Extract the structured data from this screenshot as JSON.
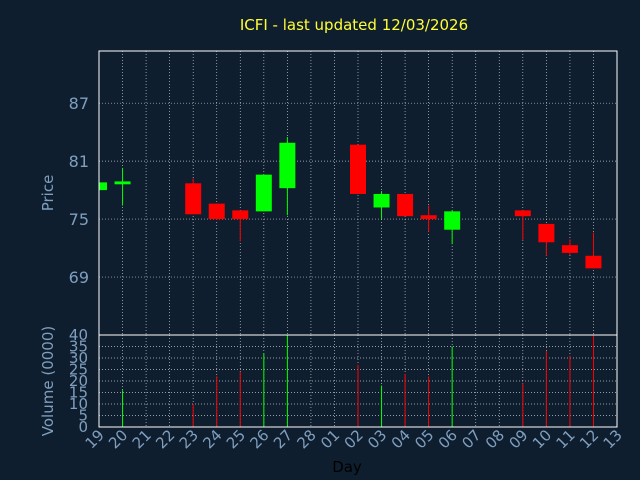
{
  "colors": {
    "background": "#0f1e2e",
    "up": "#00ff00",
    "down": "#ff0000",
    "grid": "#ffffff",
    "axis": "#7f9fbf",
    "title": "#ffff33"
  },
  "chart_data": {
    "type": "candlestick",
    "title": "ICFI - last updated 12/03/2026",
    "xlabel": "Day",
    "ylabel": "Price",
    "volume_label": "Volume (0000)",
    "x_ticks": [
      "19",
      "20",
      "21",
      "22",
      "23",
      "24",
      "25",
      "26",
      "27",
      "28",
      "01",
      "02",
      "03",
      "04",
      "05",
      "06",
      "07",
      "08",
      "09",
      "10",
      "11",
      "12",
      "13"
    ],
    "price_ticks": [
      69,
      75,
      81,
      87
    ],
    "price_range": [
      63,
      92.4
    ],
    "volume_ticks": [
      0,
      5,
      10,
      15,
      20,
      25,
      30,
      35,
      40
    ],
    "volume_range": [
      0,
      40
    ],
    "grid": true,
    "candles": [
      {
        "day": "19",
        "open": 78.0,
        "high": 78.8,
        "low": 78.0,
        "close": 78.8,
        "volume": null
      },
      {
        "day": "20",
        "open": 78.6,
        "high": 80.3,
        "low": 76.4,
        "close": 78.9,
        "volume": 16
      },
      {
        "day": "23",
        "open": 78.7,
        "high": 79.2,
        "low": 75.5,
        "close": 75.5,
        "volume": 10
      },
      {
        "day": "24",
        "open": 76.6,
        "high": 76.6,
        "low": 74.9,
        "close": 75.0,
        "volume": 22
      },
      {
        "day": "25",
        "open": 75.9,
        "high": 75.9,
        "low": 72.7,
        "close": 75.0,
        "volume": 24
      },
      {
        "day": "26",
        "open": 75.8,
        "high": 79.6,
        "low": 75.8,
        "close": 79.6,
        "volume": 32
      },
      {
        "day": "27",
        "open": 78.2,
        "high": 83.5,
        "low": 75.4,
        "close": 82.9,
        "volume": 40
      },
      {
        "day": "02",
        "open": 82.7,
        "high": 82.7,
        "low": 77.6,
        "close": 77.6,
        "volume": 27
      },
      {
        "day": "03",
        "open": 76.2,
        "high": 77.9,
        "low": 75.0,
        "close": 77.6,
        "volume": 18
      },
      {
        "day": "04",
        "open": 77.6,
        "high": 77.6,
        "low": 75.3,
        "close": 75.3,
        "volume": 23
      },
      {
        "day": "05",
        "open": 75.4,
        "high": 76.4,
        "low": 73.7,
        "close": 75.0,
        "volume": 22
      },
      {
        "day": "06",
        "open": 73.9,
        "high": 75.9,
        "low": 72.4,
        "close": 75.8,
        "volume": 35
      },
      {
        "day": "09",
        "open": 75.9,
        "high": 75.9,
        "low": 72.8,
        "close": 75.3,
        "volume": 19
      },
      {
        "day": "10",
        "open": 74.5,
        "high": 74.5,
        "low": 71.2,
        "close": 72.6,
        "volume": 33
      },
      {
        "day": "11",
        "open": 72.3,
        "high": 72.9,
        "low": 71.3,
        "close": 71.5,
        "volume": 31
      },
      {
        "day": "12",
        "open": 71.2,
        "high": 73.6,
        "low": 69.9,
        "close": 69.9,
        "volume": 40
      }
    ]
  }
}
